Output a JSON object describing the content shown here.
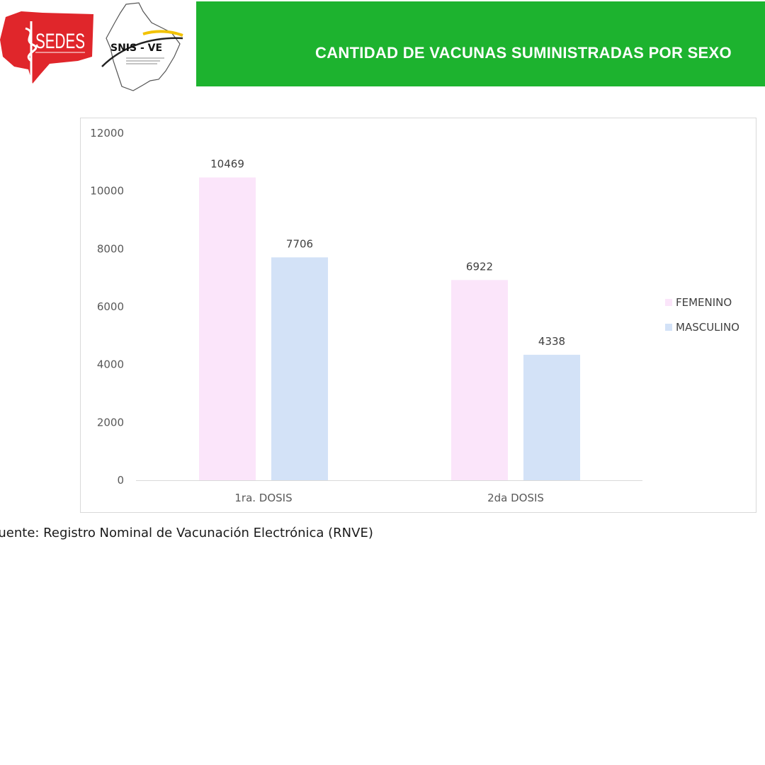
{
  "header": {
    "title": "CANTIDAD DE VACUNAS SUMINISTRADAS POR SEXO",
    "sedes_logo_text": "SEDES",
    "snis_logo_text": "SNIS - VE",
    "brand_green": "#1db32f",
    "brand_red": "#e0262b"
  },
  "chart_data": {
    "type": "bar",
    "categories": [
      "1ra. DOSIS",
      "2da DOSIS"
    ],
    "series": [
      {
        "name": "FEMENINO",
        "values": [
          10469,
          6922
        ],
        "color": "#fbe5fa"
      },
      {
        "name": "MASCULINO",
        "values": [
          7706,
          4338
        ],
        "color": "#d3e2f7"
      }
    ],
    "ylim": [
      0,
      12000
    ],
    "yticks": [
      0,
      2000,
      4000,
      6000,
      8000,
      10000,
      12000
    ],
    "legend": "right",
    "grid": false
  },
  "footer": {
    "source": "Fuente: Registro Nominal de Vacunación Electrónica (RNVE)"
  }
}
